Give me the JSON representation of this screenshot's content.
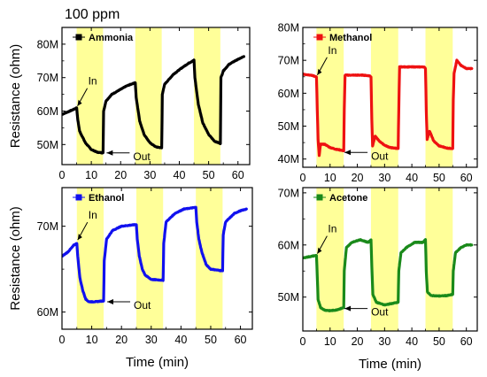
{
  "figure_label": "100 ppm",
  "chart_data": [
    {
      "type": "line",
      "series": [
        {
          "name": "Ammonia",
          "color": "#000000"
        }
      ],
      "ylabel": "Resistance (ohm)",
      "xlabel": "",
      "xlim": [
        0,
        64
      ],
      "ylim": [
        44,
        85
      ],
      "x_ticks": [
        0,
        10,
        20,
        30,
        40,
        50,
        60
      ],
      "y_ticks": [
        50,
        60,
        70,
        80
      ],
      "y_tick_labels": [
        "50M",
        "60M",
        "70M",
        "80M"
      ],
      "exposure_windows": [
        [
          5,
          14
        ],
        [
          25,
          34
        ],
        [
          45,
          54
        ]
      ],
      "highlight_color": "#ffff99",
      "annotations": [
        {
          "text": "In",
          "x": 5,
          "y": 61
        },
        {
          "text": "Out",
          "x": 14,
          "y": 47.5
        }
      ],
      "keypoints": [
        [
          0,
          59
        ],
        [
          4,
          60.5
        ],
        [
          5,
          61
        ],
        [
          5.3,
          58
        ],
        [
          6,
          54
        ],
        [
          8,
          50.5
        ],
        [
          10,
          48.5
        ],
        [
          12,
          47.7
        ],
        [
          14,
          47.5
        ],
        [
          14.2,
          60
        ],
        [
          15,
          63
        ],
        [
          17,
          65
        ],
        [
          20,
          66.5
        ],
        [
          22,
          67.5
        ],
        [
          25,
          68.5
        ],
        [
          25.3,
          64
        ],
        [
          26.5,
          57
        ],
        [
          28,
          53
        ],
        [
          30,
          50.5
        ],
        [
          32,
          49.3
        ],
        [
          34,
          49
        ],
        [
          34.2,
          65
        ],
        [
          35,
          68
        ],
        [
          38,
          71
        ],
        [
          41,
          73
        ],
        [
          43,
          74.2
        ],
        [
          45,
          75.2
        ],
        [
          45.3,
          70
        ],
        [
          46.5,
          62
        ],
        [
          48,
          56.5
        ],
        [
          50,
          53
        ],
        [
          52,
          51
        ],
        [
          54,
          50.3
        ],
        [
          54.2,
          70
        ],
        [
          55,
          72
        ],
        [
          57,
          74
        ],
        [
          59,
          75
        ],
        [
          62,
          76.3
        ]
      ]
    },
    {
      "type": "line",
      "series": [
        {
          "name": "Methanol",
          "color": "#ee1111"
        }
      ],
      "ylabel": "",
      "xlabel": "",
      "xlim": [
        0,
        64
      ],
      "ylim": [
        37.5,
        80
      ],
      "x_ticks": [
        0,
        10,
        20,
        30,
        40,
        50,
        60
      ],
      "y_ticks": [
        40,
        50,
        60,
        70,
        80
      ],
      "y_tick_labels": [
        "40M",
        "50M",
        "60M",
        "70M",
        "80M"
      ],
      "exposure_windows": [
        [
          5,
          15
        ],
        [
          25,
          35
        ],
        [
          45,
          55
        ]
      ],
      "highlight_color": "#ffff99",
      "annotations": [
        {
          "text": "In",
          "x": 5,
          "y": 65
        },
        {
          "text": "Out",
          "x": 14,
          "y": 42
        }
      ],
      "keypoints": [
        [
          0,
          65.8
        ],
        [
          3,
          65.5
        ],
        [
          5,
          65
        ],
        [
          5.3,
          55
        ],
        [
          5.6,
          46
        ],
        [
          6,
          41
        ],
        [
          6.5,
          44.5
        ],
        [
          8,
          44.5
        ],
        [
          10,
          43.5
        ],
        [
          12,
          43
        ],
        [
          14,
          42.7
        ],
        [
          15,
          42.5
        ],
        [
          15.2,
          55
        ],
        [
          15.5,
          65.5
        ],
        [
          18,
          65.5
        ],
        [
          22,
          65.5
        ],
        [
          24.5,
          65.3
        ],
        [
          25,
          65
        ],
        [
          25.3,
          52
        ],
        [
          25.6,
          44
        ],
        [
          26.5,
          47
        ],
        [
          28,
          45.5
        ],
        [
          30,
          44.2
        ],
        [
          32,
          43.5
        ],
        [
          35,
          43.2
        ],
        [
          35.2,
          55
        ],
        [
          35.5,
          68
        ],
        [
          40,
          68
        ],
        [
          44.5,
          68
        ],
        [
          45,
          67.5
        ],
        [
          45.3,
          55
        ],
        [
          45.6,
          46
        ],
        [
          46.5,
          48.5
        ],
        [
          48,
          45.5
        ],
        [
          50,
          44
        ],
        [
          53,
          43.3
        ],
        [
          55,
          43.2
        ],
        [
          55.2,
          58
        ],
        [
          55.5,
          66
        ],
        [
          56.5,
          70
        ],
        [
          58,
          68.5
        ],
        [
          60,
          67.5
        ],
        [
          62,
          67.5
        ]
      ]
    },
    {
      "type": "line",
      "series": [
        {
          "name": "Ethanol",
          "color": "#1111ee"
        }
      ],
      "ylabel": "Resistance (ohm)",
      "xlabel": "Time (min)",
      "xlim": [
        0,
        64
      ],
      "ylim": [
        58,
        74.5
      ],
      "x_ticks": [
        0,
        10,
        20,
        30,
        40,
        50,
        60
      ],
      "y_ticks": [
        60,
        70
      ],
      "y_tick_labels": [
        "60M",
        "70M"
      ],
      "exposure_windows": [
        [
          5,
          14
        ],
        [
          25,
          34
        ],
        [
          45,
          54
        ]
      ],
      "highlight_color": "#ffff99",
      "annotations": [
        {
          "text": "In",
          "x": 5,
          "y": 68.2
        },
        {
          "text": "Out",
          "x": 14,
          "y": 61.2
        }
      ],
      "keypoints": [
        [
          0,
          66.5
        ],
        [
          2,
          67
        ],
        [
          4,
          67.8
        ],
        [
          5,
          68
        ],
        [
          5.3,
          66.5
        ],
        [
          6,
          64
        ],
        [
          7,
          62.5
        ],
        [
          8,
          61.5
        ],
        [
          9,
          61.2
        ],
        [
          11,
          61.2
        ],
        [
          14,
          61.3
        ],
        [
          14.2,
          66
        ],
        [
          15,
          68.5
        ],
        [
          17,
          69.5
        ],
        [
          20,
          70
        ],
        [
          25,
          70.2
        ],
        [
          25.3,
          68.5
        ],
        [
          26,
          66.5
        ],
        [
          27,
          65
        ],
        [
          28,
          64.3
        ],
        [
          30,
          63.8
        ],
        [
          34,
          63.7
        ],
        [
          34.2,
          68
        ],
        [
          35,
          70.5
        ],
        [
          38,
          71.5
        ],
        [
          41,
          72
        ],
        [
          45,
          72.2
        ],
        [
          45.3,
          70.5
        ],
        [
          46,
          68.5
        ],
        [
          47,
          67
        ],
        [
          48.5,
          65.5
        ],
        [
          50,
          65
        ],
        [
          54,
          64.8
        ],
        [
          54.2,
          69
        ],
        [
          55,
          70.5
        ],
        [
          58,
          71.5
        ],
        [
          60,
          71.8
        ],
        [
          62,
          72
        ]
      ]
    },
    {
      "type": "line",
      "series": [
        {
          "name": "Acetone",
          "color": "#1a8a1a"
        }
      ],
      "ylabel": "",
      "xlabel": "Time (min)",
      "xlim": [
        0,
        64
      ],
      "ylim": [
        43.5,
        71
      ],
      "x_ticks": [
        0,
        10,
        20,
        30,
        40,
        50,
        60
      ],
      "y_ticks": [
        50,
        60,
        70
      ],
      "y_tick_labels": [
        "50M",
        "60M",
        "70M"
      ],
      "exposure_windows": [
        [
          5,
          15
        ],
        [
          25,
          35
        ],
        [
          45,
          55
        ]
      ],
      "highlight_color": "#ffff99",
      "annotations": [
        {
          "text": "In",
          "x": 5,
          "y": 58
        },
        {
          "text": "Out",
          "x": 14,
          "y": 47.8
        }
      ],
      "keypoints": [
        [
          0,
          57.5
        ],
        [
          3,
          57.8
        ],
        [
          5,
          58
        ],
        [
          5.3,
          54
        ],
        [
          5.6,
          49.5
        ],
        [
          6.5,
          48
        ],
        [
          8,
          47.5
        ],
        [
          10,
          47.4
        ],
        [
          12,
          47.5
        ],
        [
          14,
          47.8
        ],
        [
          15,
          48
        ],
        [
          15.2,
          55
        ],
        [
          16,
          59.5
        ],
        [
          18,
          60.5
        ],
        [
          21,
          61
        ],
        [
          24,
          60.5
        ],
        [
          25,
          61
        ],
        [
          25.3,
          56
        ],
        [
          25.7,
          50.5
        ],
        [
          27,
          49
        ],
        [
          30,
          48.5
        ],
        [
          33,
          48.8
        ],
        [
          35,
          49
        ],
        [
          35.2,
          55
        ],
        [
          36,
          58.5
        ],
        [
          38,
          59.5
        ],
        [
          41,
          60.5
        ],
        [
          44,
          60.5
        ],
        [
          45,
          61
        ],
        [
          45.3,
          55
        ],
        [
          45.7,
          51
        ],
        [
          47,
          50.3
        ],
        [
          50,
          50.2
        ],
        [
          53,
          50.3
        ],
        [
          55,
          50.5
        ],
        [
          55.2,
          55
        ],
        [
          56,
          58.5
        ],
        [
          58,
          59.5
        ],
        [
          60,
          60
        ],
        [
          62,
          60
        ]
      ]
    }
  ]
}
